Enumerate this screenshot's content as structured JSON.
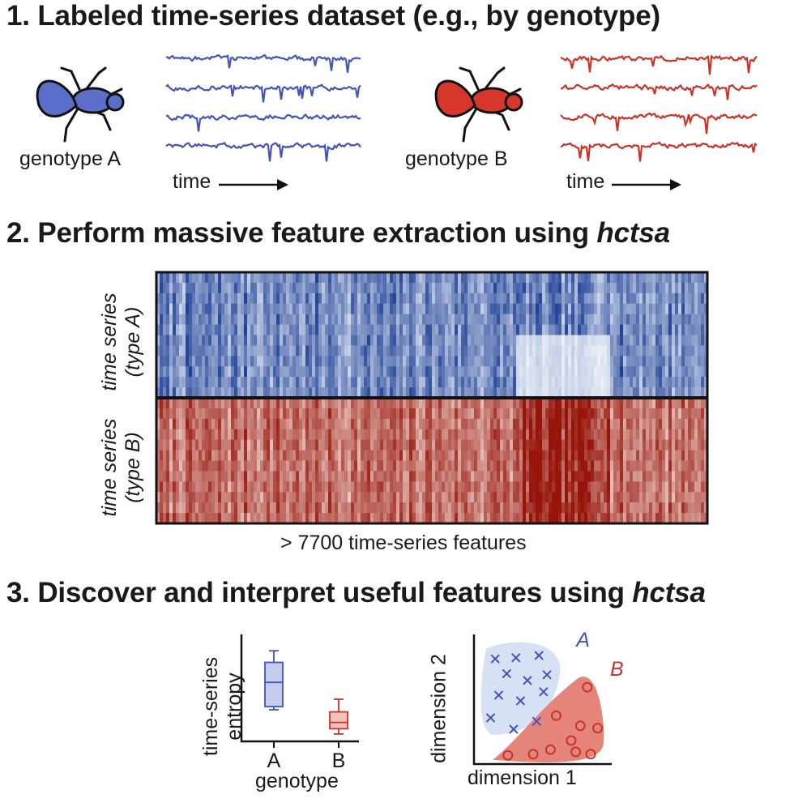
{
  "section1": {
    "title": "1. Labeled time-series dataset (e.g., by genotype)",
    "group_a": {
      "label": "genotype A",
      "time_label": "time",
      "color": "#4455b8",
      "fly_color": "#5b6ec9"
    },
    "group_b": {
      "label": "genotype B",
      "time_label": "time",
      "color": "#c8342a",
      "fly_color": "#d7372b"
    }
  },
  "section2": {
    "title_prefix": "2. Perform massive feature extraction using ",
    "title_em": "hctsa",
    "row_label_a_line1": "time series",
    "row_label_a_line2": "(type A)",
    "row_label_b_line1": "time series",
    "row_label_b_line2": "(type B)",
    "x_label": "> 7700 time-series features"
  },
  "section3": {
    "title_prefix": "3. Discover and interpret useful features using ",
    "title_em": "hctsa"
  },
  "chart_data": [
    {
      "type": "box",
      "ylabel_line1": "time-series",
      "ylabel_line2": "entropy",
      "xlabel": "genotype",
      "categories": [
        "A",
        "B"
      ],
      "colors": [
        "#4455b8",
        "#c8342a"
      ],
      "boxes": [
        {
          "category": "A",
          "whisker_low": 0.3,
          "q1": 0.33,
          "median": 0.56,
          "q3": 0.75,
          "whisker_high": 0.86
        },
        {
          "category": "B",
          "whisker_low": 0.07,
          "q1": 0.12,
          "median": 0.18,
          "q3": 0.28,
          "whisker_high": 0.4
        }
      ],
      "ylim": [
        0,
        1
      ]
    },
    {
      "type": "scatter",
      "xlabel": "dimension 1",
      "ylabel": "dimension 2",
      "series": [
        {
          "name": "A",
          "marker": "x",
          "color": "#4455b8",
          "region_color": "#d7e1f4",
          "points": [
            [
              0.1,
              0.87
            ],
            [
              0.28,
              0.88
            ],
            [
              0.48,
              0.9
            ],
            [
              0.2,
              0.74
            ],
            [
              0.38,
              0.68
            ],
            [
              0.55,
              0.73
            ],
            [
              0.13,
              0.55
            ],
            [
              0.32,
              0.5
            ],
            [
              0.52,
              0.58
            ],
            [
              0.06,
              0.35
            ],
            [
              0.26,
              0.25
            ],
            [
              0.46,
              0.32
            ]
          ]
        },
        {
          "name": "B",
          "marker": "o",
          "color": "#c8342a",
          "region_color": "#e4847b",
          "points": [
            [
              0.9,
              0.62
            ],
            [
              0.63,
              0.37
            ],
            [
              0.84,
              0.28
            ],
            [
              0.99,
              0.26
            ],
            [
              0.76,
              0.15
            ],
            [
              0.58,
              0.07
            ],
            [
              0.8,
              0.05
            ],
            [
              0.93,
              0.03
            ],
            [
              0.21,
              0.02
            ],
            [
              0.43,
              0.03
            ]
          ]
        }
      ],
      "xlim": [
        0,
        1
      ],
      "ylim": [
        0,
        1
      ]
    }
  ]
}
